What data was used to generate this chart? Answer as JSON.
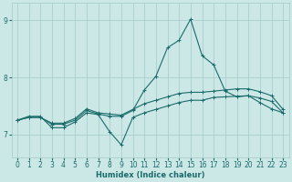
{
  "xlabel": "Humidex (Indice chaleur)",
  "ylabel": "",
  "background_color": "#cce8e6",
  "grid_color": "#aad0cc",
  "line_color": "#1a6b6b",
  "xlim": [
    -0.5,
    23.5
  ],
  "ylim": [
    6.6,
    9.3
  ],
  "yticks": [
    7,
    8,
    9
  ],
  "xticks": [
    0,
    1,
    2,
    3,
    4,
    5,
    6,
    7,
    8,
    9,
    10,
    11,
    12,
    13,
    14,
    15,
    16,
    17,
    18,
    19,
    20,
    21,
    22,
    23
  ],
  "line1_x": [
    0,
    1,
    2,
    3,
    4,
    5,
    6,
    7,
    8,
    9,
    10,
    11,
    12,
    13,
    14,
    15,
    16,
    17,
    18,
    19,
    20,
    21,
    22,
    23
  ],
  "line1_y": [
    7.25,
    7.32,
    7.32,
    7.12,
    7.12,
    7.22,
    7.38,
    7.35,
    7.05,
    6.82,
    7.3,
    7.38,
    7.44,
    7.5,
    7.56,
    7.6,
    7.6,
    7.65,
    7.66,
    7.67,
    7.68,
    7.64,
    7.58,
    7.38
  ],
  "line2_x": [
    0,
    1,
    2,
    3,
    4,
    5,
    6,
    7,
    8,
    9,
    10,
    11,
    12,
    13,
    14,
    15,
    16,
    17,
    18,
    19,
    20,
    21,
    22,
    23
  ],
  "line2_y": [
    7.25,
    7.3,
    7.3,
    7.18,
    7.18,
    7.25,
    7.42,
    7.36,
    7.32,
    7.32,
    7.42,
    7.78,
    8.02,
    8.52,
    8.65,
    9.02,
    8.38,
    8.22,
    7.76,
    7.66,
    7.68,
    7.56,
    7.45,
    7.38
  ],
  "line3_x": [
    0,
    1,
    2,
    3,
    4,
    5,
    6,
    7,
    8,
    9,
    10,
    11,
    12,
    13,
    14,
    15,
    16,
    17,
    18,
    19,
    20,
    21,
    22,
    23
  ],
  "line3_y": [
    7.25,
    7.3,
    7.3,
    7.2,
    7.2,
    7.28,
    7.45,
    7.38,
    7.36,
    7.34,
    7.44,
    7.54,
    7.6,
    7.66,
    7.72,
    7.74,
    7.74,
    7.76,
    7.78,
    7.8,
    7.8,
    7.75,
    7.68,
    7.44
  ]
}
